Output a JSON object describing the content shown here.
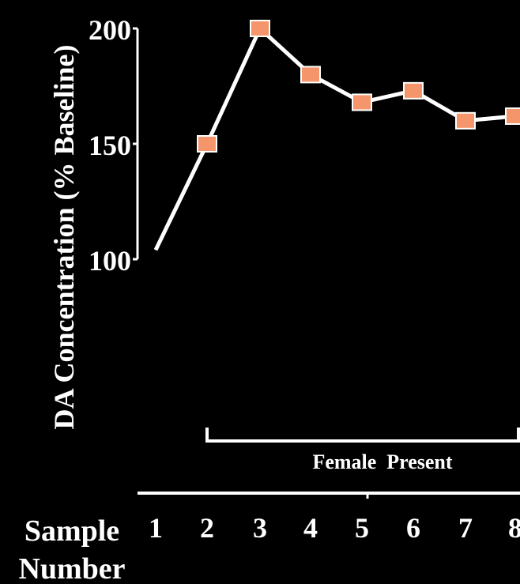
{
  "chart_data": {
    "type": "line",
    "ylabel": "DA Concentration (% Baseline)",
    "xlabel_line1": "Sample",
    "xlabel_line2": "Number",
    "categories": [
      "1",
      "2",
      "3",
      "4",
      "5",
      "6",
      "7",
      "8"
    ],
    "yticks": [
      100,
      150,
      200
    ],
    "ylim": [
      100,
      200
    ],
    "series": [
      {
        "values": [
          104,
          150,
          200,
          180,
          168,
          173,
          160,
          162
        ],
        "marker_index_start": 1,
        "line_color": "#ffffff",
        "marker_color": "#f5956c"
      }
    ],
    "annotation": "Female  Present",
    "background": "#000000"
  }
}
